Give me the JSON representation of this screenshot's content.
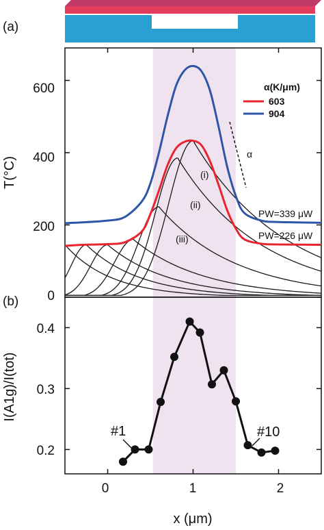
{
  "colors": {
    "series_603": "#e8242e",
    "series_904": "#2f55a6",
    "heated_region": "#efe3f0",
    "substrate": "#2aa0d2",
    "flake": "#e23d5e",
    "flake_edge": "#c23a69",
    "curves": "#1a1a1a"
  },
  "panels": {
    "a_label": "(a)",
    "b_label": "(b)"
  },
  "xaxis": {
    "label": "x (μm)",
    "ticks": [
      "0",
      "1",
      "2"
    ]
  },
  "chart_data": [
    {
      "type": "line",
      "panel": "a",
      "ylabel": "T(°C)",
      "xlim": [
        -0.5,
        2.5
      ],
      "ylim": [
        0,
        690
      ],
      "yticks": [
        "0",
        "200",
        "400",
        "600"
      ],
      "highlight_region": [
        0.53,
        1.5
      ],
      "legend": {
        "title": "α(K/μm)",
        "placement": "top-right",
        "entries": [
          "603",
          "904"
        ]
      },
      "series": [
        {
          "name": "904",
          "x": [
            -0.5,
            -0.3,
            0.0,
            0.2,
            0.4,
            0.5,
            0.6,
            0.7,
            0.8,
            0.9,
            1.0,
            1.1,
            1.2,
            1.3,
            1.4,
            1.5,
            1.6,
            1.8,
            2.0,
            2.5
          ],
          "values": [
            205,
            207,
            212,
            222,
            265,
            315,
            400,
            500,
            585,
            628,
            640,
            625,
            570,
            470,
            360,
            280,
            233,
            212,
            208,
            206
          ]
        },
        {
          "name": "603",
          "x": [
            -0.5,
            -0.3,
            0.0,
            0.2,
            0.4,
            0.5,
            0.6,
            0.7,
            0.8,
            0.9,
            1.0,
            1.1,
            1.2,
            1.3,
            1.4,
            1.5,
            1.6,
            1.8,
            2.0,
            2.5
          ],
          "values": [
            142,
            145,
            147,
            152,
            182,
            230,
            295,
            365,
            412,
            430,
            433,
            420,
            375,
            310,
            240,
            190,
            160,
            148,
            146,
            145
          ]
        }
      ],
      "local_curves_peak_x": [
        -0.5,
        -0.25,
        0.0,
        0.3,
        0.6,
        0.82,
        1.0
      ],
      "local_curves_peak_y": [
        145,
        145,
        145,
        160,
        250,
        385,
        433
      ],
      "annotations": [
        "(i)",
        "(ii)",
        "(iii)",
        "α",
        "PW=339 μW",
        "PW=226 μW"
      ]
    },
    {
      "type": "line",
      "panel": "b",
      "ylabel": "I(A1g)/I(tot)",
      "ylim": [
        0.16,
        0.45
      ],
      "yticks": [
        "0.2",
        "0.3",
        "0.4"
      ],
      "x": [
        0.18,
        0.32,
        0.48,
        0.62,
        0.78,
        0.96,
        1.08,
        1.22,
        1.36,
        1.5,
        1.64,
        1.8,
        1.96
      ],
      "values": [
        0.18,
        0.2,
        0.2,
        0.278,
        0.352,
        0.41,
        0.392,
        0.307,
        0.33,
        0.279,
        0.207,
        0.195,
        0.198
      ],
      "annotations": [
        "#1",
        "#10"
      ]
    }
  ]
}
